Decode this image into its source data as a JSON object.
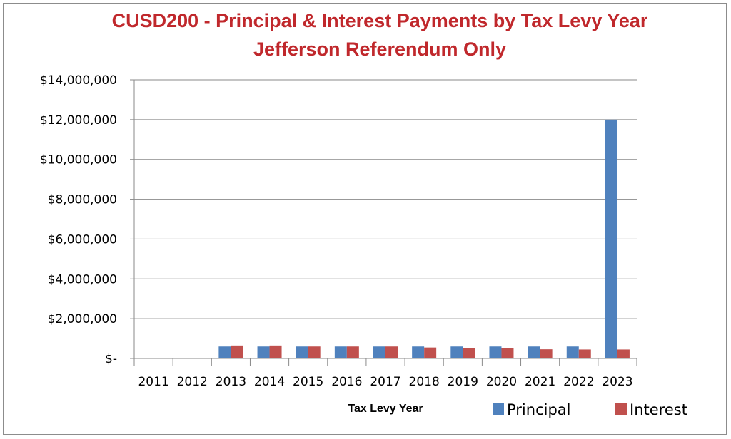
{
  "chart_data": {
    "type": "bar",
    "title": "CUSD200 - Principal & Interest Payments by Tax Levy Year",
    "subtitle": "Jefferson Referendum Only",
    "xlabel": "Tax Levy Year",
    "ylabel": "",
    "ylim": [
      0,
      14000000
    ],
    "yticks": [
      0,
      2000000,
      4000000,
      6000000,
      8000000,
      10000000,
      12000000,
      14000000
    ],
    "ytick_labels": [
      "$-",
      "$2,000,000",
      "$4,000,000",
      "$6,000,000",
      "$8,000,000",
      "$10,000,000",
      "$12,000,000",
      "$14,000,000"
    ],
    "categories": [
      "2011",
      "2012",
      "2013",
      "2014",
      "2015",
      "2016",
      "2017",
      "2018",
      "2019",
      "2020",
      "2021",
      "2022",
      "2023"
    ],
    "series": [
      {
        "name": "Principal",
        "color": "#4f81bd",
        "values": [
          0,
          0,
          600000,
          600000,
          600000,
          600000,
          600000,
          600000,
          600000,
          600000,
          600000,
          600000,
          12000000
        ]
      },
      {
        "name": "Interest",
        "color": "#c0504d",
        "values": [
          0,
          0,
          650000,
          650000,
          600000,
          600000,
          600000,
          550000,
          530000,
          520000,
          460000,
          450000,
          450000
        ]
      }
    ],
    "grid": true,
    "legend_position": "bottom-right"
  }
}
